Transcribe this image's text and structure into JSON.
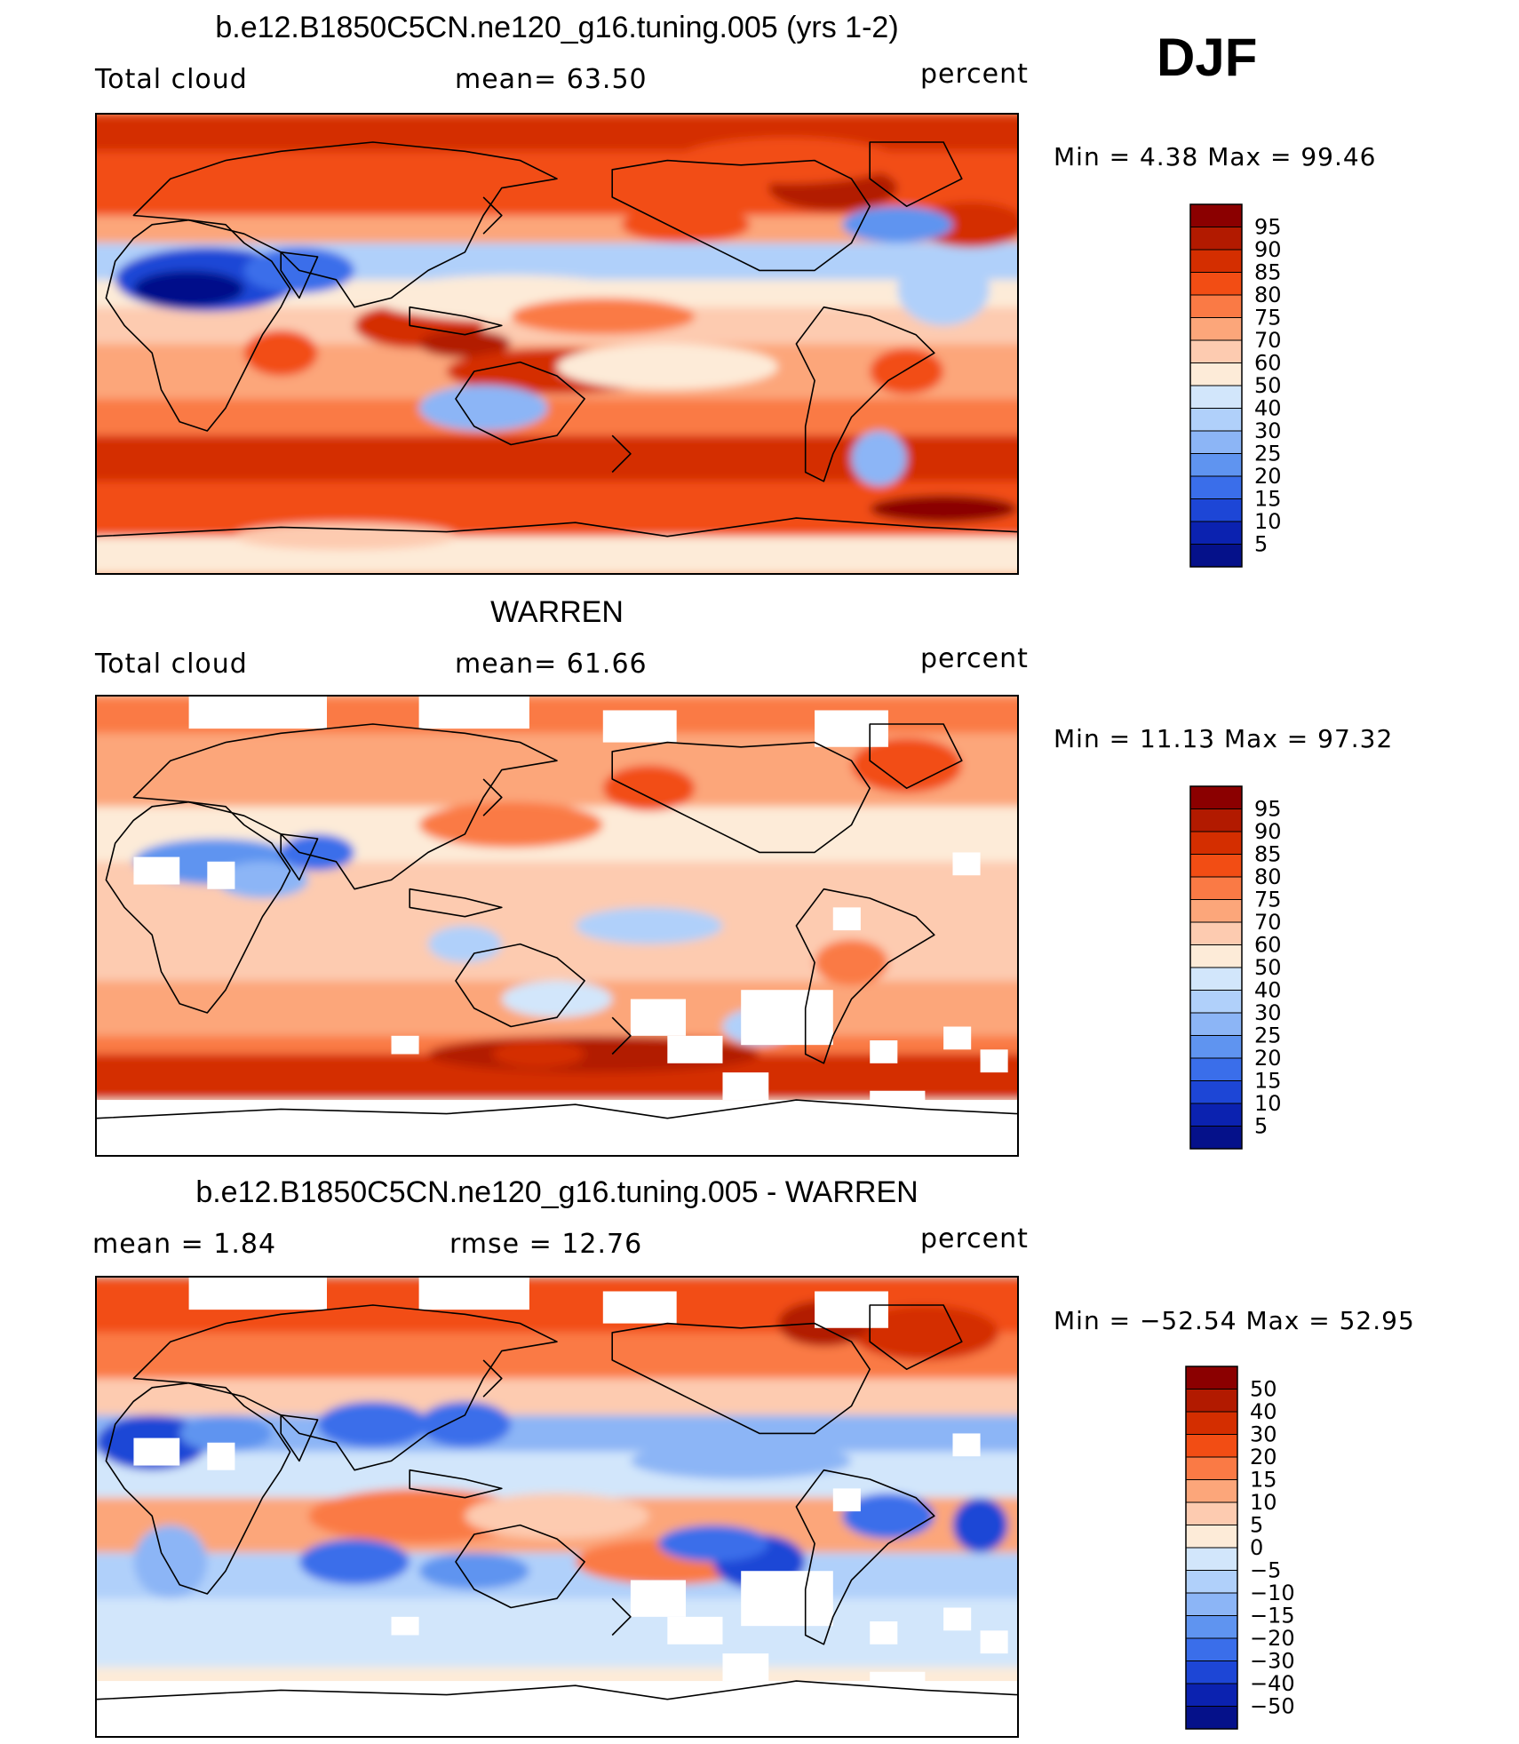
{
  "season": "DJF",
  "chart_data": [
    {
      "type": "heatmap",
      "title": "b.e12.B1850C5CN.ne120_g16.tuning.005 (yrs 1-2)",
      "left_label": "Total cloud",
      "center_label": "mean=   63.50",
      "units": "percent",
      "minmax": "Min =     4.38  Max =   99.46",
      "mean": 63.5,
      "min": 4.38,
      "max": 99.46,
      "missing_data": false,
      "colorbar": {
        "levels": [
          "95",
          "90",
          "85",
          "80",
          "75",
          "70",
          "60",
          "50",
          "40",
          "30",
          "25",
          "20",
          "15",
          "10",
          "5"
        ],
        "colors": [
          "#8b0000",
          "#b21a00",
          "#d42e00",
          "#f24d14",
          "#fa7a45",
          "#fca67a",
          "#fdcbb0",
          "#fdebd8",
          "#d2e6fb",
          "#b0d0fa",
          "#8cb5f6",
          "#5f94f0",
          "#3a6eea",
          "#1d46d6",
          "#0b22b0",
          "#05118a"
        ]
      }
    },
    {
      "type": "heatmap",
      "title": "WARREN",
      "left_label": "Total cloud",
      "center_label": "mean=   61.66",
      "units": "percent",
      "minmax": "Min =   11.13  Max =   97.32",
      "mean": 61.66,
      "min": 11.13,
      "max": 97.32,
      "missing_data": true,
      "colorbar": {
        "levels": [
          "95",
          "90",
          "85",
          "80",
          "75",
          "70",
          "60",
          "50",
          "40",
          "30",
          "25",
          "20",
          "15",
          "10",
          "5"
        ],
        "colors": [
          "#8b0000",
          "#b21a00",
          "#d42e00",
          "#f24d14",
          "#fa7a45",
          "#fca67a",
          "#fdcbb0",
          "#fdebd8",
          "#d2e6fb",
          "#b0d0fa",
          "#8cb5f6",
          "#5f94f0",
          "#3a6eea",
          "#1d46d6",
          "#0b22b0",
          "#05118a"
        ]
      }
    },
    {
      "type": "heatmap",
      "title": "b.e12.B1850C5CN.ne120_g16.tuning.005 - WARREN",
      "left_label": "mean =    1.84",
      "center_label": "rmse =    12.76",
      "units": "percent",
      "minmax": "Min = −52.54  Max =   52.95",
      "mean": 1.84,
      "rmse": 12.76,
      "min": -52.54,
      "max": 52.95,
      "missing_data": true,
      "colorbar": {
        "levels": [
          "50",
          "40",
          "30",
          "20",
          "15",
          "10",
          "5",
          "0",
          "−5",
          "−10",
          "−15",
          "−20",
          "−30",
          "−40",
          "−50"
        ],
        "colors": [
          "#8b0000",
          "#b21a00",
          "#d42e00",
          "#f24d14",
          "#fa7a45",
          "#fca67a",
          "#fdcbb0",
          "#fdebd8",
          "#d2e6fb",
          "#b0d0fa",
          "#8cb5f6",
          "#5f94f0",
          "#3a6eea",
          "#1d46d6",
          "#0b22b0",
          "#05118a"
        ]
      }
    }
  ]
}
